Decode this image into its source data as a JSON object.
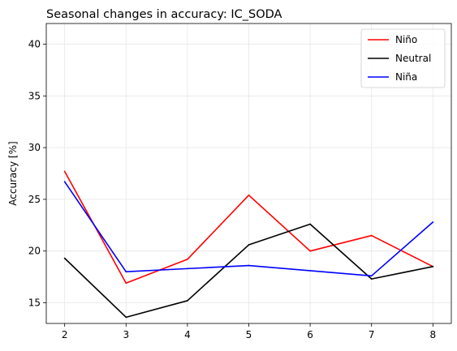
{
  "chart_data": {
    "type": "line",
    "title": "Seasonal changes in accuracy: IC_SODA",
    "xlabel": "",
    "ylabel": "Accuracy [%]",
    "x": [
      2,
      3,
      4,
      5,
      6,
      7,
      8
    ],
    "xlim": [
      1.7,
      8.3
    ],
    "ylim": [
      13,
      42
    ],
    "xticks": [
      2,
      3,
      4,
      5,
      6,
      7,
      8
    ],
    "yticks": [
      15,
      20,
      25,
      30,
      35,
      40
    ],
    "grid": true,
    "legend_position": "top-right",
    "series": [
      {
        "name": "Niño",
        "color": "#ff0000",
        "values": [
          27.7,
          16.9,
          19.2,
          25.4,
          20.0,
          21.5,
          18.5
        ]
      },
      {
        "name": "Neutral",
        "color": "#000000",
        "values": [
          19.3,
          13.6,
          15.2,
          20.6,
          22.6,
          17.3,
          18.5
        ]
      },
      {
        "name": "Niña",
        "color": "#0000ff",
        "values": [
          26.7,
          18.0,
          18.3,
          18.6,
          18.1,
          17.6,
          22.8
        ]
      }
    ]
  }
}
